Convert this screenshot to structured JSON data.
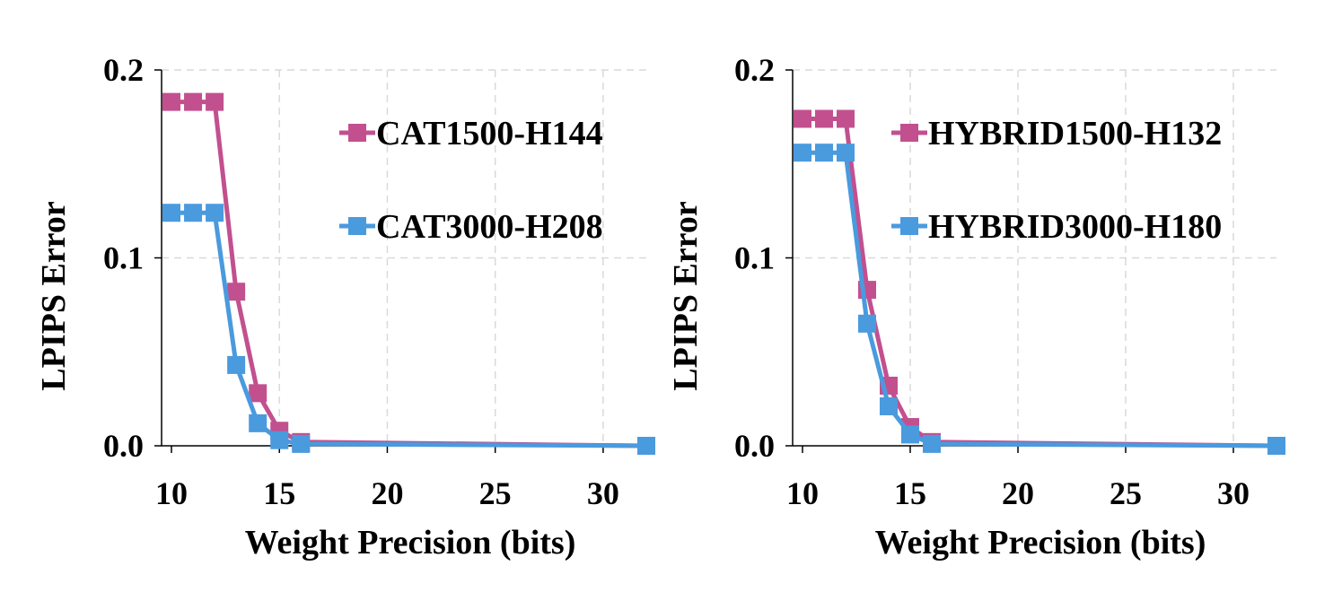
{
  "chart_data": [
    {
      "type": "line",
      "xlabel": "Weight Precision (bits)",
      "ylabel": "LPIPS Error",
      "xlim": [
        10,
        32
      ],
      "ylim": [
        0,
        0.2
      ],
      "xticks": [
        "10",
        "15",
        "20",
        "25",
        "30"
      ],
      "yticks": [
        "0.0",
        "0.1",
        "0.2"
      ],
      "grid": true,
      "legend_position": "top-right",
      "series": [
        {
          "name": "CAT1500-H144",
          "color": "#c2508f",
          "x": [
            10,
            11,
            12,
            13,
            14,
            15,
            16,
            32
          ],
          "y": [
            0.183,
            0.183,
            0.183,
            0.082,
            0.028,
            0.008,
            0.002,
            0.0
          ]
        },
        {
          "name": "CAT3000-H208",
          "color": "#4a9ade",
          "x": [
            10,
            11,
            12,
            13,
            14,
            15,
            16,
            32
          ],
          "y": [
            0.124,
            0.124,
            0.124,
            0.043,
            0.012,
            0.003,
            0.001,
            0.0
          ]
        }
      ]
    },
    {
      "type": "line",
      "xlabel": "Weight Precision (bits)",
      "ylabel": "LPIPS Error",
      "xlim": [
        10,
        32
      ],
      "ylim": [
        0,
        0.2
      ],
      "xticks": [
        "10",
        "15",
        "20",
        "25",
        "30"
      ],
      "yticks": [
        "0.0",
        "0.1",
        "0.2"
      ],
      "grid": true,
      "legend_position": "top-right",
      "series": [
        {
          "name": "HYBRID1500-H132",
          "color": "#c2508f",
          "x": [
            10,
            11,
            12,
            13,
            14,
            15,
            16,
            32
          ],
          "y": [
            0.174,
            0.174,
            0.174,
            0.083,
            0.032,
            0.01,
            0.002,
            0.0
          ]
        },
        {
          "name": "HYBRID3000-H180",
          "color": "#4a9ade",
          "x": [
            10,
            11,
            12,
            13,
            14,
            15,
            16,
            32
          ],
          "y": [
            0.156,
            0.156,
            0.156,
            0.065,
            0.021,
            0.006,
            0.001,
            0.0
          ]
        }
      ]
    }
  ]
}
